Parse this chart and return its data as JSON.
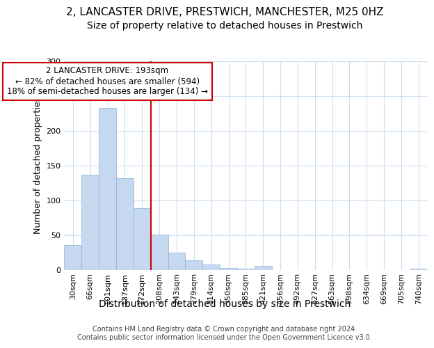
{
  "title1": "2, LANCASTER DRIVE, PRESTWICH, MANCHESTER, M25 0HZ",
  "title2": "Size of property relative to detached houses in Prestwich",
  "xlabel": "Distribution of detached houses by size in Prestwich",
  "ylabel": "Number of detached properties",
  "footer1": "Contains HM Land Registry data © Crown copyright and database right 2024.",
  "footer2": "Contains public sector information licensed under the Open Government Licence v3.0.",
  "categories": [
    "30sqm",
    "66sqm",
    "101sqm",
    "137sqm",
    "172sqm",
    "208sqm",
    "243sqm",
    "279sqm",
    "314sqm",
    "350sqm",
    "385sqm",
    "421sqm",
    "456sqm",
    "492sqm",
    "527sqm",
    "563sqm",
    "598sqm",
    "634sqm",
    "669sqm",
    "705sqm",
    "740sqm"
  ],
  "values": [
    36,
    137,
    233,
    132,
    89,
    51,
    25,
    14,
    8,
    3,
    2,
    6,
    0,
    0,
    0,
    0,
    0,
    0,
    0,
    0,
    2
  ],
  "bar_color": "#c5d8f0",
  "bar_edgecolor": "#8ab4d8",
  "bar_linewidth": 0.5,
  "vline_x": 4.5,
  "vline_color": "#cc0000",
  "annotation_line1": "2 LANCASTER DRIVE: 193sqm",
  "annotation_line2": "← 82% of detached houses are smaller (594)",
  "annotation_line3": "18% of semi-detached houses are larger (134) →",
  "annotation_box_edgecolor": "#cc0000",
  "ylim": [
    0,
    300
  ],
  "yticks": [
    0,
    50,
    100,
    150,
    200,
    250,
    300
  ],
  "bg_color": "#ffffff",
  "plot_bg_color": "#ffffff",
  "grid_color": "#ccddee",
  "title_fontsize": 11,
  "subtitle_fontsize": 10,
  "tick_fontsize": 8,
  "ylabel_fontsize": 9,
  "xlabel_fontsize": 10,
  "ann_fontsize": 8.5,
  "footer_fontsize": 7
}
